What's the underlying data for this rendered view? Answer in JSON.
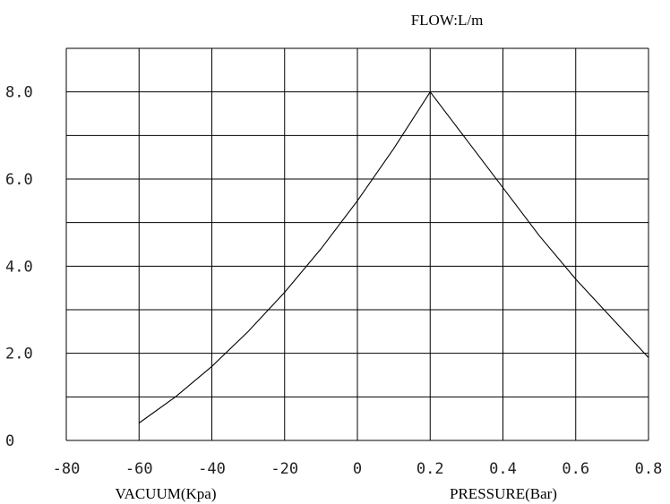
{
  "chart_data": {
    "type": "line",
    "title": "FLOW:L/m",
    "xlabel_left": "VACUUM(Kpa)",
    "xlabel_right": "PRESSURE(Bar)",
    "x_ticks": [
      "-80",
      "-60",
      "-40",
      "-20",
      "0",
      "0.2",
      "0.4",
      "0.6",
      "0.8"
    ],
    "y_ticks": [
      {
        "label": "0",
        "value": 0
      },
      {
        "label": "2.0",
        "value": 2
      },
      {
        "label": "4.0",
        "value": 4
      },
      {
        "label": "6.0",
        "value": 6
      },
      {
        "label": "8.0",
        "value": 8
      }
    ],
    "ylim": [
      0,
      9
    ],
    "grid": true,
    "series": [
      {
        "points": [
          {
            "x": "-60",
            "y": 0.4
          },
          {
            "x": "-50",
            "y": 1.0
          },
          {
            "x": "-40",
            "y": 1.7
          },
          {
            "x": "-30",
            "y": 2.5
          },
          {
            "x": "-20",
            "y": 3.4
          },
          {
            "x": "-10",
            "y": 4.4
          },
          {
            "x": "0",
            "y": 5.5
          },
          {
            "x": "0.1",
            "y": 6.7
          },
          {
            "x": "0.2",
            "y": 8.0
          },
          {
            "x": "0.3",
            "y": 6.9
          },
          {
            "x": "0.4",
            "y": 5.8
          },
          {
            "x": "0.5",
            "y": 4.7
          },
          {
            "x": "0.6",
            "y": 3.7
          },
          {
            "x": "0.7",
            "y": 2.8
          },
          {
            "x": "0.8",
            "y": 1.9
          }
        ]
      }
    ]
  }
}
